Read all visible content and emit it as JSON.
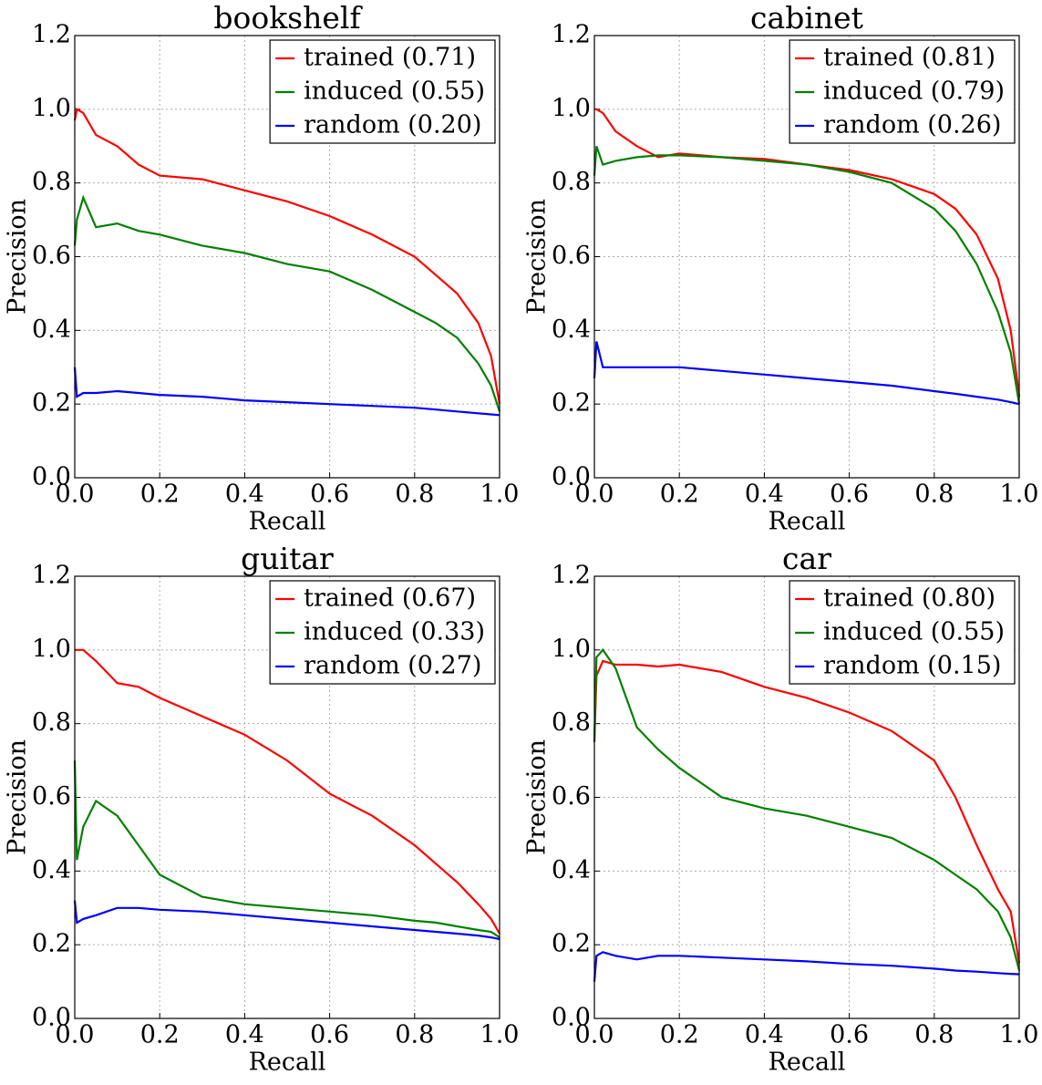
{
  "chart_data": [
    {
      "type": "line",
      "title": "bookshelf",
      "xlabel": "Recall",
      "ylabel": "Precision",
      "x": [
        0,
        0.005,
        0.02,
        0.05,
        0.1,
        0.15,
        0.2,
        0.3,
        0.4,
        0.5,
        0.6,
        0.7,
        0.8,
        0.85,
        0.9,
        0.95,
        0.98,
        1.0
      ],
      "series": [
        {
          "name": "trained (0.71)",
          "color": "#ff0000",
          "values": [
            0.97,
            1.0,
            0.99,
            0.93,
            0.9,
            0.85,
            0.82,
            0.81,
            0.78,
            0.75,
            0.71,
            0.66,
            0.6,
            0.55,
            0.5,
            0.42,
            0.33,
            0.2
          ]
        },
        {
          "name": "induced (0.55)",
          "color": "#008000",
          "values": [
            0.63,
            0.7,
            0.76,
            0.68,
            0.69,
            0.67,
            0.66,
            0.63,
            0.61,
            0.58,
            0.56,
            0.51,
            0.45,
            0.42,
            0.38,
            0.31,
            0.25,
            0.18
          ]
        },
        {
          "name": "random (0.20)",
          "color": "#0000ff",
          "values": [
            0.3,
            0.22,
            0.23,
            0.23,
            0.235,
            0.23,
            0.225,
            0.22,
            0.21,
            0.205,
            0.2,
            0.195,
            0.19,
            0.185,
            0.18,
            0.175,
            0.172,
            0.17
          ]
        }
      ],
      "xlim": [
        0,
        1
      ],
      "ylim": [
        0,
        1.2
      ],
      "xticks": [
        {
          "value": 0,
          "label": "0.0"
        },
        0.2,
        0.4,
        0.6,
        0.8,
        {
          "value": 1,
          "label": "1.0"
        }
      ],
      "yticks": [
        {
          "value": 0,
          "label": "0.0"
        },
        0.2,
        0.4,
        0.6,
        0.8,
        {
          "value": 1,
          "label": "1.0"
        },
        1.2
      ],
      "grid": true,
      "legend": "upper right"
    },
    {
      "type": "line",
      "title": "cabinet",
      "xlabel": "Recall",
      "ylabel": "Precision",
      "x": [
        0,
        0.005,
        0.02,
        0.05,
        0.1,
        0.15,
        0.2,
        0.3,
        0.4,
        0.5,
        0.6,
        0.7,
        0.8,
        0.85,
        0.9,
        0.95,
        0.98,
        1.0
      ],
      "series": [
        {
          "name": "trained (0.81)",
          "color": "#ff0000",
          "values": [
            1.0,
            1.0,
            0.99,
            0.94,
            0.9,
            0.87,
            0.88,
            0.87,
            0.865,
            0.85,
            0.835,
            0.81,
            0.77,
            0.73,
            0.66,
            0.54,
            0.4,
            0.22
          ]
        },
        {
          "name": "induced (0.79)",
          "color": "#008000",
          "values": [
            0.82,
            0.9,
            0.85,
            0.86,
            0.87,
            0.875,
            0.875,
            0.87,
            0.86,
            0.85,
            0.83,
            0.8,
            0.73,
            0.67,
            0.58,
            0.45,
            0.34,
            0.2
          ]
        },
        {
          "name": "random (0.26)",
          "color": "#0000ff",
          "values": [
            0.27,
            0.37,
            0.3,
            0.3,
            0.3,
            0.3,
            0.3,
            0.29,
            0.28,
            0.27,
            0.26,
            0.25,
            0.235,
            0.228,
            0.22,
            0.212,
            0.205,
            0.2
          ]
        }
      ],
      "xlim": [
        0,
        1
      ],
      "ylim": [
        0,
        1.2
      ],
      "xticks": [
        {
          "value": 0,
          "label": "0.0"
        },
        0.2,
        0.4,
        0.6,
        0.8,
        {
          "value": 1,
          "label": "1.0"
        }
      ],
      "yticks": [
        {
          "value": 0,
          "label": "0.0"
        },
        0.2,
        0.4,
        0.6,
        0.8,
        {
          "value": 1,
          "label": "1.0"
        },
        1.2
      ],
      "grid": true,
      "legend": "upper right"
    },
    {
      "type": "line",
      "title": "guitar",
      "xlabel": "Recall",
      "ylabel": "Precision",
      "x": [
        0,
        0.005,
        0.02,
        0.05,
        0.1,
        0.15,
        0.2,
        0.3,
        0.4,
        0.5,
        0.6,
        0.7,
        0.8,
        0.85,
        0.9,
        0.95,
        0.98,
        1.0
      ],
      "series": [
        {
          "name": "trained (0.67)",
          "color": "#ff0000",
          "values": [
            1.0,
            1.0,
            1.0,
            0.97,
            0.91,
            0.9,
            0.87,
            0.82,
            0.77,
            0.7,
            0.61,
            0.55,
            0.47,
            0.42,
            0.37,
            0.31,
            0.27,
            0.23
          ]
        },
        {
          "name": "induced (0.33)",
          "color": "#008000",
          "values": [
            0.7,
            0.43,
            0.52,
            0.59,
            0.55,
            0.47,
            0.39,
            0.33,
            0.31,
            0.3,
            0.29,
            0.28,
            0.265,
            0.26,
            0.25,
            0.24,
            0.235,
            0.22
          ]
        },
        {
          "name": "random (0.27)",
          "color": "#0000ff",
          "values": [
            0.32,
            0.26,
            0.27,
            0.28,
            0.3,
            0.3,
            0.295,
            0.29,
            0.28,
            0.27,
            0.26,
            0.25,
            0.24,
            0.235,
            0.23,
            0.225,
            0.22,
            0.215
          ]
        }
      ],
      "xlim": [
        0,
        1
      ],
      "ylim": [
        0,
        1.2
      ],
      "xticks": [
        {
          "value": 0,
          "label": "0.0"
        },
        0.2,
        0.4,
        0.6,
        0.8,
        {
          "value": 1,
          "label": "1.0"
        }
      ],
      "yticks": [
        {
          "value": 0,
          "label": "0.0"
        },
        0.2,
        0.4,
        0.6,
        0.8,
        {
          "value": 1,
          "label": "1.0"
        },
        1.2
      ],
      "grid": true,
      "legend": "upper right"
    },
    {
      "type": "line",
      "title": "car",
      "xlabel": "Recall",
      "ylabel": "Precision",
      "x": [
        0,
        0.005,
        0.02,
        0.05,
        0.1,
        0.15,
        0.2,
        0.3,
        0.4,
        0.5,
        0.6,
        0.7,
        0.8,
        0.85,
        0.9,
        0.95,
        0.98,
        1.0
      ],
      "series": [
        {
          "name": "trained (0.80)",
          "color": "#ff0000",
          "values": [
            0.75,
            0.93,
            0.97,
            0.96,
            0.96,
            0.955,
            0.96,
            0.94,
            0.9,
            0.87,
            0.83,
            0.78,
            0.7,
            0.6,
            0.47,
            0.35,
            0.29,
            0.15
          ]
        },
        {
          "name": "induced (0.55)",
          "color": "#008000",
          "values": [
            0.75,
            0.98,
            1.0,
            0.95,
            0.79,
            0.73,
            0.68,
            0.6,
            0.57,
            0.55,
            0.52,
            0.49,
            0.43,
            0.39,
            0.35,
            0.29,
            0.22,
            0.13
          ]
        },
        {
          "name": "random (0.15)",
          "color": "#0000ff",
          "values": [
            0.1,
            0.17,
            0.18,
            0.17,
            0.16,
            0.17,
            0.17,
            0.165,
            0.16,
            0.155,
            0.148,
            0.143,
            0.135,
            0.13,
            0.127,
            0.123,
            0.121,
            0.12
          ]
        }
      ],
      "xlim": [
        0,
        1
      ],
      "ylim": [
        0,
        1.2
      ],
      "xticks": [
        {
          "value": 0,
          "label": "0.0"
        },
        0.2,
        0.4,
        0.6,
        0.8,
        {
          "value": 1,
          "label": "1.0"
        }
      ],
      "yticks": [
        {
          "value": 0,
          "label": "0.0"
        },
        0.2,
        0.4,
        0.6,
        0.8,
        {
          "value": 1,
          "label": "1.0"
        },
        1.2
      ],
      "grid": true,
      "legend": "upper right"
    }
  ]
}
